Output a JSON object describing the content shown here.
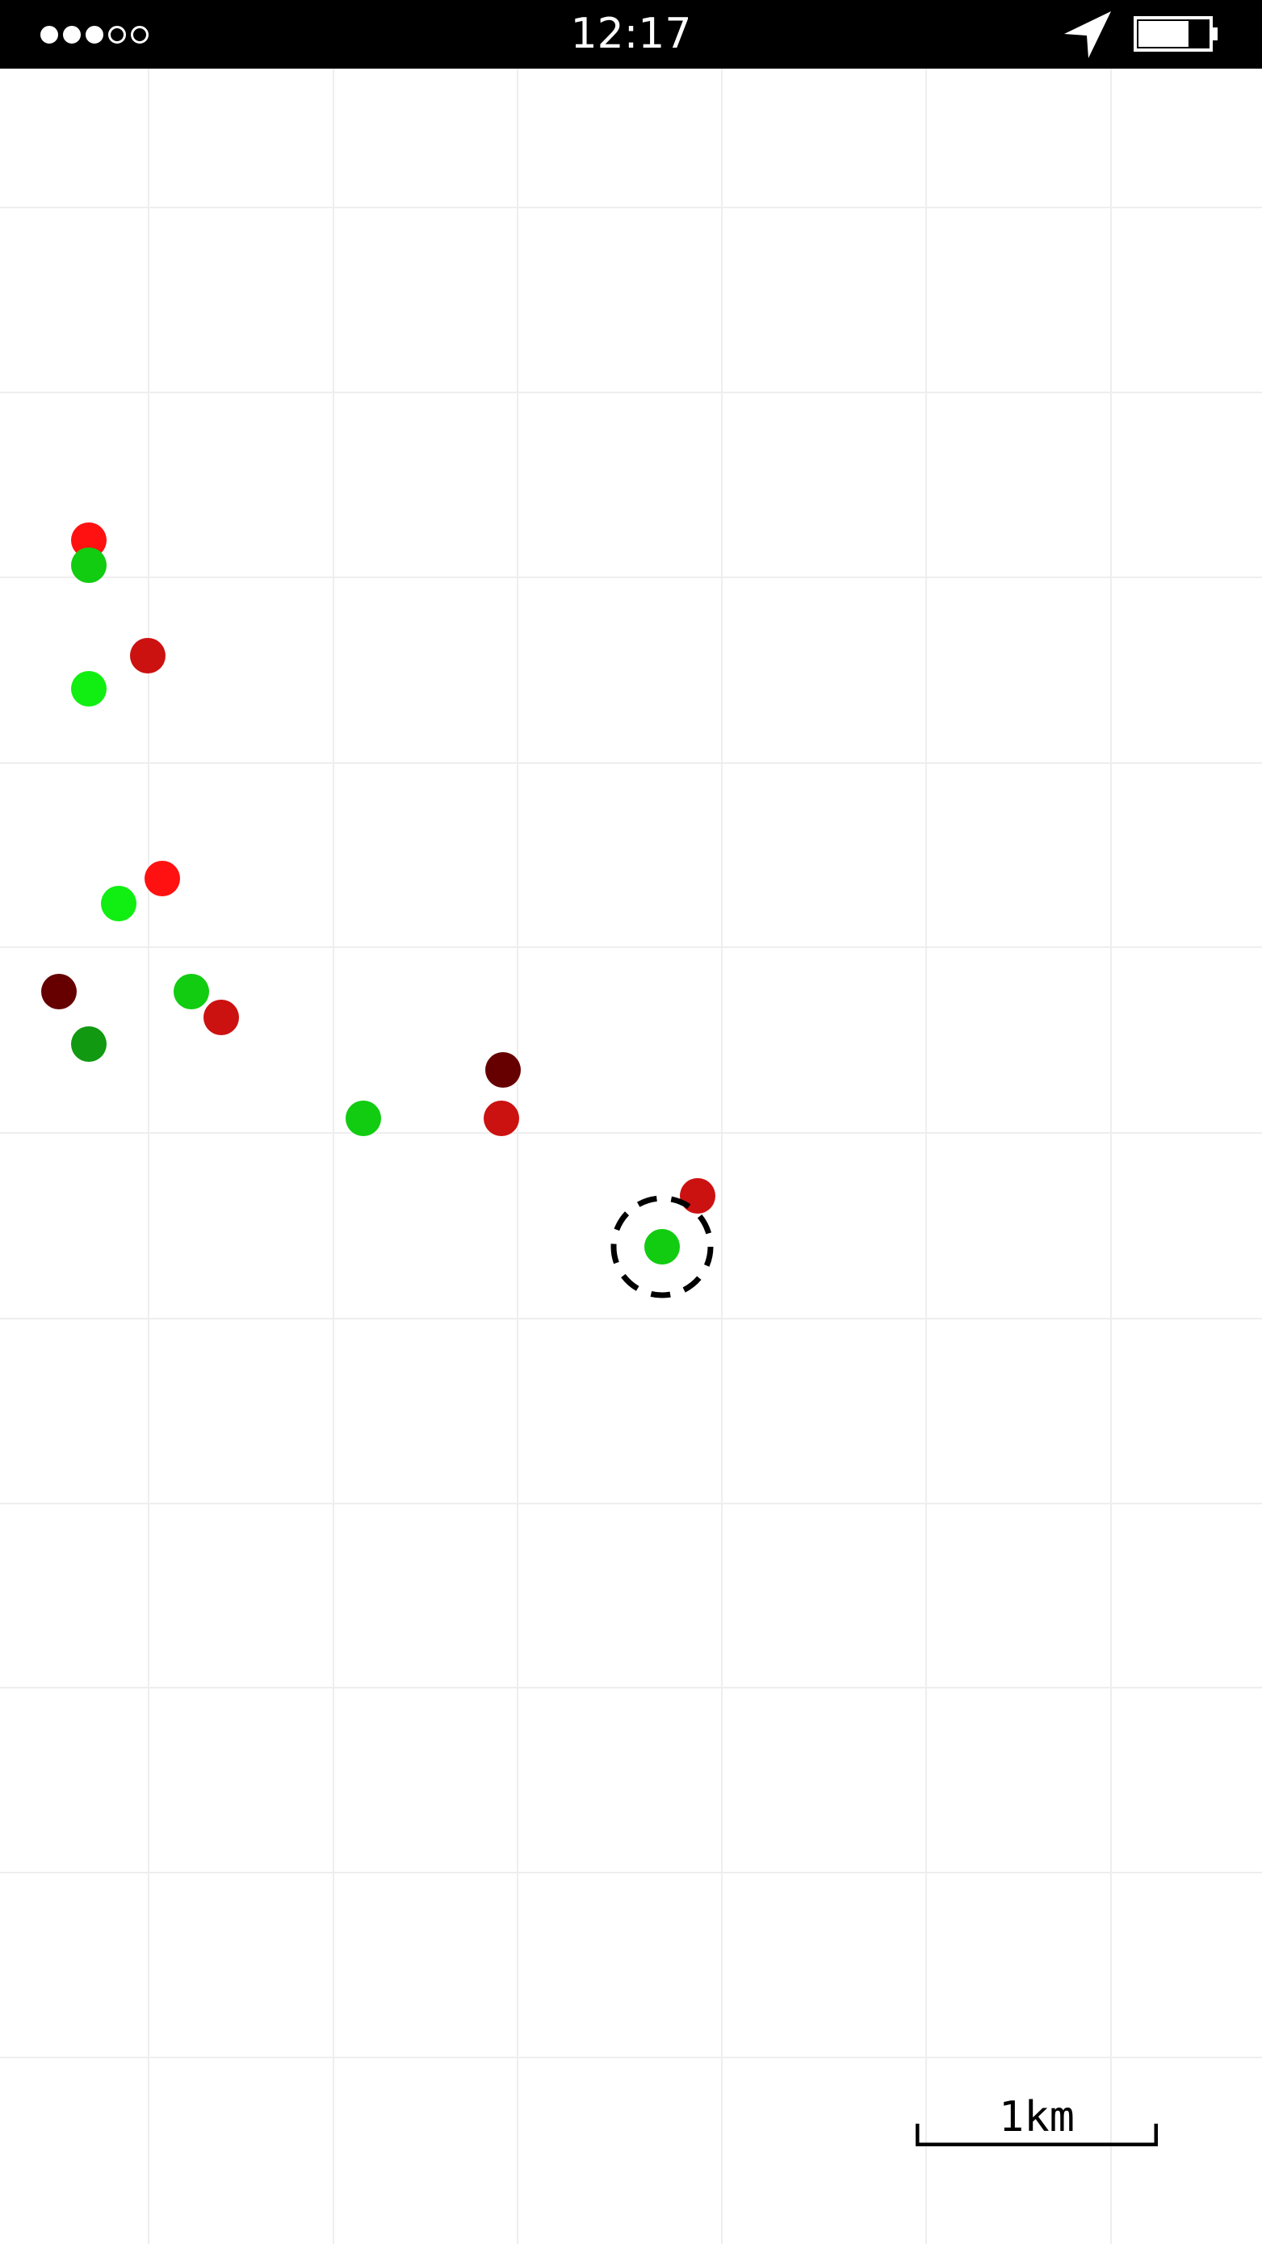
{
  "status_bar": {
    "time": "12:17",
    "signal_strength": {
      "filled": 3,
      "total": 5
    },
    "location_icon": "location-arrow-icon",
    "battery_icon": "battery-icon",
    "battery_level": 0.72
  },
  "map": {
    "background": "#ffffff",
    "grid_color": "#eeeeee",
    "markers": [
      {
        "color": "#ff1111"
      },
      {
        "color": "#11cc11"
      },
      {
        "color": "#cc1111"
      },
      {
        "color": "#11ee11"
      },
      {
        "color": "#ff1111"
      },
      {
        "color": "#11ee11"
      },
      {
        "color": "#660000"
      },
      {
        "color": "#11cc11"
      },
      {
        "color": "#cc1111"
      },
      {
        "color": "#119911"
      },
      {
        "color": "#660000"
      },
      {
        "color": "#11cc11"
      },
      {
        "color": "#cc1111"
      },
      {
        "color": "#cc1111"
      },
      {
        "color": "#11cc11",
        "selected": true
      }
    ]
  },
  "scale": {
    "label": "1km"
  }
}
